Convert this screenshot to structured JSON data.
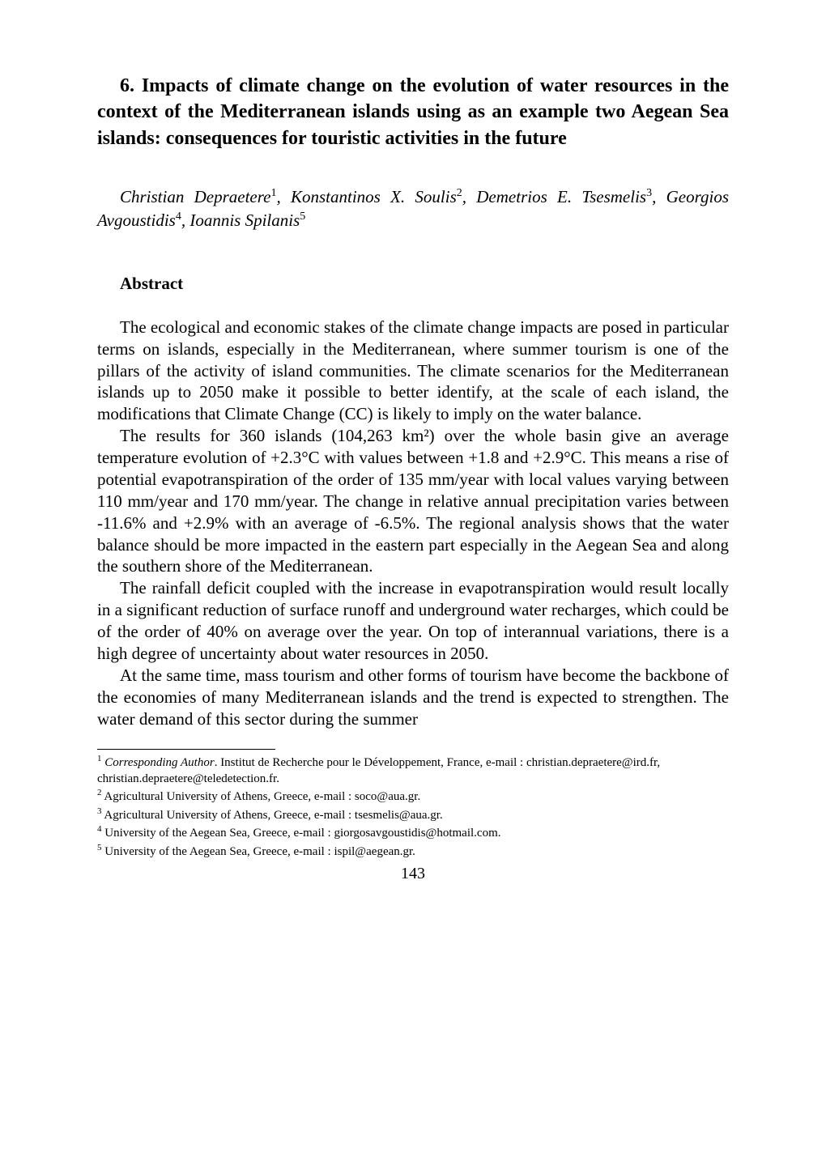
{
  "chapter": {
    "title": "6. Impacts of climate change on the evolution of water resources in the context of the Mediterranean islands using as an example two Aegean Sea islands: consequences for touristic activities in the future"
  },
  "authors": {
    "line": "Christian Depraetere",
    "sup1": "1",
    "sep1": ", Konstantinos X. Soulis",
    "sup2": "2",
    "sep2": ", Demetrios E. Tsesmelis",
    "sup3": "3",
    "sep3": ", Georgios Avgoustidis",
    "sup4": "4",
    "sep4": ", Ioannis Spilanis",
    "sup5": "5"
  },
  "abstract": {
    "heading": "Abstract",
    "p1": "The ecological and economic stakes of the climate change impacts are posed in particular terms on islands, especially in the Mediterranean, where summer tourism is one of the pillars of the activity of island communities. The climate scenarios for the Mediterranean islands up to 2050 make it possible to better identify, at the scale of each island, the modifications that Climate Change (CC) is likely to imply on the water balance.",
    "p2": "The results for 360 islands (104,263 km²) over the whole basin give an average temperature evolution of +2.3°C with values between +1.8 and +2.9°C. This means a rise of potential evapotranspiration of the order of 135 mm/year with local values varying between 110 mm/year and 170 mm/year. The change in relative annual precipitation varies between -11.6% and +2.9% with an average of -6.5%. The regional analysis shows that the water balance should be more impacted in the eastern part especially in the Aegean Sea and along the southern shore of the Mediterranean.",
    "p3": "The rainfall deficit coupled with the increase in evapotranspiration would result locally in a significant reduction of surface runoff and underground water recharges, which could be of the order of 40% on average over the year. On top of interannual variations, there is a high degree of uncertainty about water resources in 2050.",
    "p4": "At the same time, mass tourism and other forms of tourism have become the backbone of the economies of many Mediterranean islands and the trend is expected to strengthen. The water demand of this sector during the summer"
  },
  "footnotes": {
    "f1_num": "1",
    "f1_label": "Corresponding Author",
    "f1_text": ". Institut de Recherche pour le Développement, France, e-mail : christian.depraetere@ird.fr, christian.depraetere@teledetection.fr.",
    "f2_num": "2",
    "f2_text": " Agricultural University of Athens, Greece, e-mail : soco@aua.gr.",
    "f3_num": "3",
    "f3_text": " Agricultural University of Athens, Greece, e-mail : tsesmelis@aua.gr.",
    "f4_num": "4",
    "f4_text": " University of the Aegean Sea, Greece, e-mail : giorgosavgoustidis@hotmail.com.",
    "f5_num": "5",
    "f5_text": " University of the Aegean Sea, Greece, e-mail : ispil@aegean.gr."
  },
  "pageNumber": "143"
}
